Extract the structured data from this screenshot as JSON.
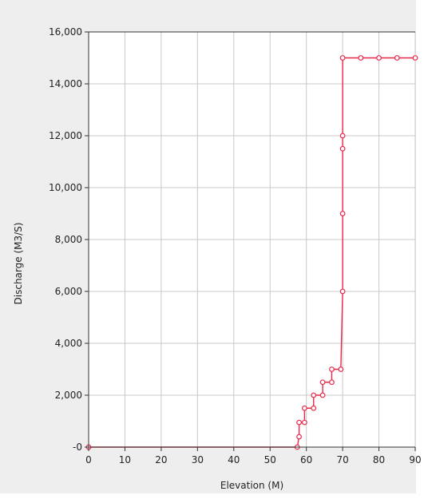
{
  "chart_data": {
    "type": "line",
    "xlabel": "Elevation (M)",
    "ylabel": "Discharge (M3/S)",
    "xlim": [
      0,
      90
    ],
    "ylim": [
      0,
      16000
    ],
    "grid": true,
    "x_ticks": [
      0,
      10,
      20,
      30,
      40,
      50,
      60,
      70,
      80,
      90
    ],
    "x_tick_labels": [
      "0",
      "10",
      "20",
      "30",
      "40",
      "50",
      "60",
      "70",
      "80",
      "90"
    ],
    "y_ticks": [
      0,
      2000,
      4000,
      6000,
      8000,
      10000,
      12000,
      14000,
      16000
    ],
    "y_tick_labels": [
      "-0",
      "2,000",
      "4,000",
      "6,000",
      "8,000",
      "10,000",
      "12,000",
      "14,000",
      "16,000"
    ],
    "series": [
      {
        "color": "#e8284a",
        "points": [
          [
            0,
            0
          ],
          [
            57.5,
            0
          ],
          [
            58,
            400
          ],
          [
            58,
            950
          ],
          [
            59.5,
            950
          ],
          [
            59.5,
            1500
          ],
          [
            62,
            1500
          ],
          [
            62,
            2000
          ],
          [
            64.5,
            2000
          ],
          [
            64.5,
            2500
          ],
          [
            67,
            2500
          ],
          [
            67,
            3000
          ],
          [
            69.5,
            3000
          ],
          [
            70,
            6000
          ],
          [
            70,
            9000
          ],
          [
            70,
            11500
          ],
          [
            70,
            12000
          ],
          [
            70,
            15000
          ],
          [
            75,
            15000
          ],
          [
            80,
            15000
          ],
          [
            85,
            15000
          ],
          [
            90,
            15000
          ]
        ]
      }
    ]
  }
}
